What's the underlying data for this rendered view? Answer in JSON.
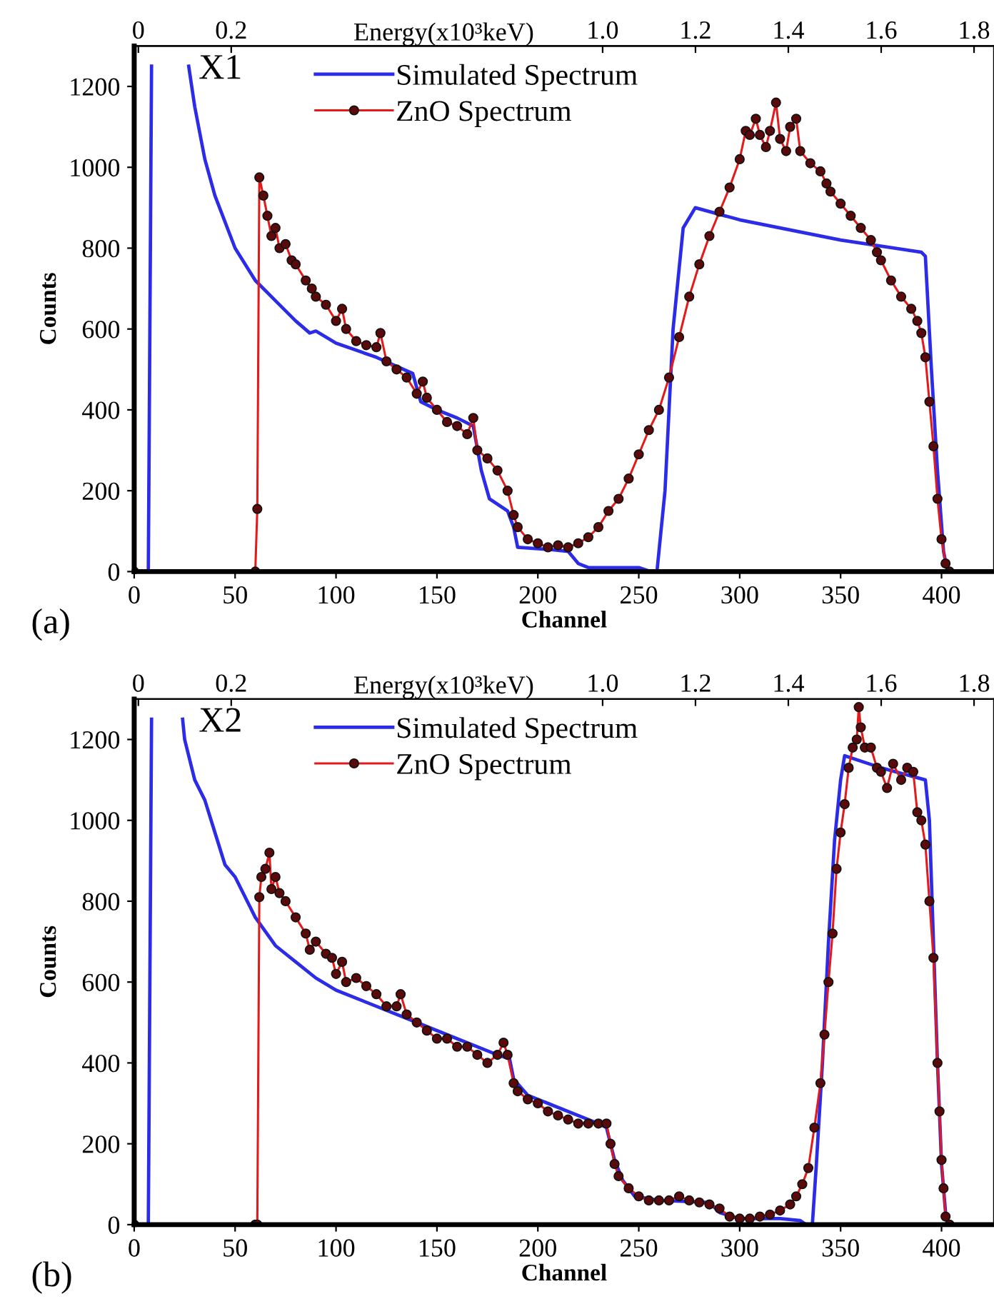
{
  "chart_data": [
    {
      "type": "line",
      "xlabel": "Channel",
      "ylabel": "Counts",
      "x2label": "Energy(x10³keV)",
      "xlim": [
        0,
        426
      ],
      "xticks": [
        0,
        50,
        100,
        150,
        200,
        250,
        300,
        350,
        400
      ],
      "ylim": [
        0,
        1300
      ],
      "yticks": [
        0,
        200,
        400,
        600,
        800,
        1000,
        1200
      ],
      "x2lim": [
        -0.009,
        1.843
      ],
      "x2ticks": [
        0,
        0.2,
        {
          "value": 1.0,
          "label": "1.0"
        },
        1.2,
        1.4,
        1.6,
        1.8
      ],
      "legend": "top left",
      "grid": false,
      "annotations": [
        "X1",
        "(a)"
      ],
      "series": [
        {
          "name": "Simulated Spectrum",
          "color": "#2b2be8",
          "marker": "none",
          "x": [
            7,
            8.6,
            9,
            26,
            27,
            30,
            35,
            40,
            50,
            60,
            70,
            80,
            87,
            90,
            100,
            120,
            138,
            142,
            150,
            160,
            168,
            172,
            176,
            185,
            188,
            190,
            205,
            215,
            220,
            225,
            250,
            256,
            259,
            263,
            267,
            272,
            278,
            300,
            350,
            390,
            392,
            395,
            398,
            401,
            403
          ],
          "values": [
            0,
            1250,
            null,
            null,
            1250,
            1150,
            1020,
            930,
            800,
            720,
            670,
            620,
            590,
            595,
            565,
            530,
            490,
            420,
            400,
            380,
            360,
            250,
            180,
            150,
            110,
            60,
            55,
            50,
            20,
            10,
            10,
            0,
            0,
            200,
            600,
            850,
            900,
            870,
            820,
            790,
            780,
            500,
            250,
            50,
            0
          ]
        },
        {
          "name": "ZnO Spectrum",
          "color": "#e41a1a",
          "marker": "circle",
          "x": [
            0,
            60,
            61,
            62,
            64,
            66,
            68,
            70,
            72,
            75,
            78,
            80,
            85,
            88,
            90,
            95,
            100,
            103,
            105,
            110,
            115,
            120,
            122,
            125,
            130,
            135,
            140,
            143,
            145,
            150,
            155,
            160,
            165,
            168,
            170,
            175,
            180,
            185,
            188,
            190,
            195,
            200,
            205,
            210,
            215,
            220,
            225,
            230,
            235,
            240,
            245,
            250,
            255,
            260,
            265,
            270,
            275,
            280,
            285,
            290,
            295,
            300,
            303,
            305,
            308,
            310,
            313,
            315,
            318,
            320,
            323,
            325,
            328,
            330,
            335,
            340,
            343,
            345,
            350,
            355,
            360,
            365,
            368,
            370,
            375,
            380,
            385,
            388,
            390,
            392,
            394,
            396,
            398,
            400,
            402,
            404
          ],
          "values": [
            0,
            0,
            155,
            975,
            930,
            880,
            830,
            850,
            800,
            810,
            770,
            760,
            720,
            700,
            680,
            660,
            620,
            650,
            600,
            570,
            560,
            555,
            590,
            520,
            500,
            480,
            440,
            470,
            430,
            400,
            370,
            360,
            340,
            380,
            300,
            280,
            250,
            200,
            140,
            110,
            80,
            70,
            60,
            65,
            60,
            70,
            85,
            110,
            150,
            180,
            230,
            290,
            350,
            400,
            480,
            580,
            680,
            760,
            830,
            890,
            950,
            1020,
            1090,
            1080,
            1120,
            1080,
            1050,
            1090,
            1160,
            1070,
            1040,
            1100,
            1120,
            1040,
            1010,
            990,
            960,
            940,
            910,
            880,
            850,
            820,
            790,
            770,
            720,
            680,
            650,
            620,
            590,
            530,
            420,
            310,
            180,
            80,
            20,
            0
          ]
        }
      ]
    },
    {
      "type": "line",
      "xlabel": "Channel",
      "ylabel": "Counts",
      "x2label": "Energy(x10³keV)",
      "xlim": [
        0,
        426
      ],
      "xticks": [
        0,
        50,
        100,
        150,
        200,
        250,
        300,
        350,
        400
      ],
      "ylim": [
        0,
        1300
      ],
      "yticks": [
        0,
        200,
        400,
        600,
        800,
        1000,
        1200
      ],
      "x2lim": [
        -0.009,
        1.843
      ],
      "x2ticks": [
        0,
        0.2,
        {
          "value": 1.0,
          "label": "1.0"
        },
        1.2,
        1.4,
        1.6,
        1.8
      ],
      "legend": "top left",
      "grid": false,
      "annotations": [
        "X2",
        "(b)"
      ],
      "series": [
        {
          "name": "Simulated Spectrum",
          "color": "#2b2be8",
          "marker": "none",
          "x": [
            7,
            8.6,
            9,
            23,
            24,
            25,
            30,
            35,
            40,
            45,
            50,
            60,
            70,
            80,
            90,
            100,
            120,
            140,
            160,
            180,
            186,
            188,
            195,
            210,
            230,
            234,
            238,
            242,
            248,
            260,
            285,
            290,
            300,
            320,
            330,
            333,
            336,
            338,
            341,
            344,
            347,
            350,
            352,
            370,
            392,
            394,
            396,
            398,
            400,
            402,
            404
          ],
          "values": [
            0,
            1250,
            null,
            null,
            1250,
            1200,
            1100,
            1050,
            970,
            890,
            860,
            760,
            690,
            650,
            610,
            580,
            540,
            500,
            460,
            420,
            410,
            360,
            320,
            290,
            250,
            240,
            160,
            110,
            70,
            60,
            55,
            30,
            15,
            15,
            10,
            0,
            0,
            150,
            400,
            700,
            950,
            1100,
            1160,
            1130,
            1100,
            1000,
            700,
            400,
            150,
            30,
            0
          ]
        },
        {
          "name": "ZnO Spectrum",
          "color": "#e41a1a",
          "marker": "circle",
          "x": [
            0,
            60,
            61,
            62,
            63,
            65,
            67,
            68,
            70,
            72,
            75,
            80,
            85,
            87,
            90,
            95,
            98,
            100,
            103,
            105,
            110,
            115,
            120,
            125,
            130,
            132,
            135,
            140,
            145,
            150,
            155,
            160,
            165,
            170,
            175,
            180,
            183,
            185,
            188,
            190,
            195,
            200,
            205,
            210,
            215,
            220,
            225,
            230,
            234,
            236,
            238,
            240,
            245,
            250,
            255,
            260,
            265,
            270,
            275,
            280,
            285,
            290,
            295,
            300,
            305,
            310,
            315,
            320,
            325,
            328,
            331,
            334,
            337,
            340,
            342,
            344,
            346,
            348,
            350,
            352,
            354,
            356,
            358,
            359,
            360,
            362,
            365,
            368,
            370,
            373,
            376,
            380,
            383,
            386,
            388,
            390,
            392,
            394,
            396,
            398,
            399,
            400,
            401,
            402,
            404
          ],
          "values": [
            0,
            0,
            0,
            810,
            860,
            880,
            920,
            830,
            860,
            820,
            800,
            760,
            720,
            680,
            700,
            670,
            660,
            620,
            650,
            600,
            610,
            590,
            570,
            540,
            540,
            570,
            520,
            500,
            480,
            460,
            460,
            440,
            440,
            420,
            400,
            420,
            450,
            420,
            350,
            330,
            310,
            300,
            280,
            270,
            260,
            250,
            250,
            250,
            250,
            200,
            150,
            120,
            90,
            70,
            60,
            60,
            60,
            70,
            60,
            55,
            50,
            40,
            20,
            15,
            15,
            20,
            25,
            35,
            50,
            70,
            100,
            140,
            240,
            350,
            470,
            600,
            720,
            880,
            970,
            1040,
            1130,
            1180,
            1200,
            1280,
            1230,
            1180,
            1180,
            1130,
            1120,
            1080,
            1140,
            1100,
            1130,
            1120,
            1020,
            1000,
            940,
            800,
            660,
            400,
            280,
            160,
            90,
            20,
            0
          ]
        }
      ]
    }
  ]
}
